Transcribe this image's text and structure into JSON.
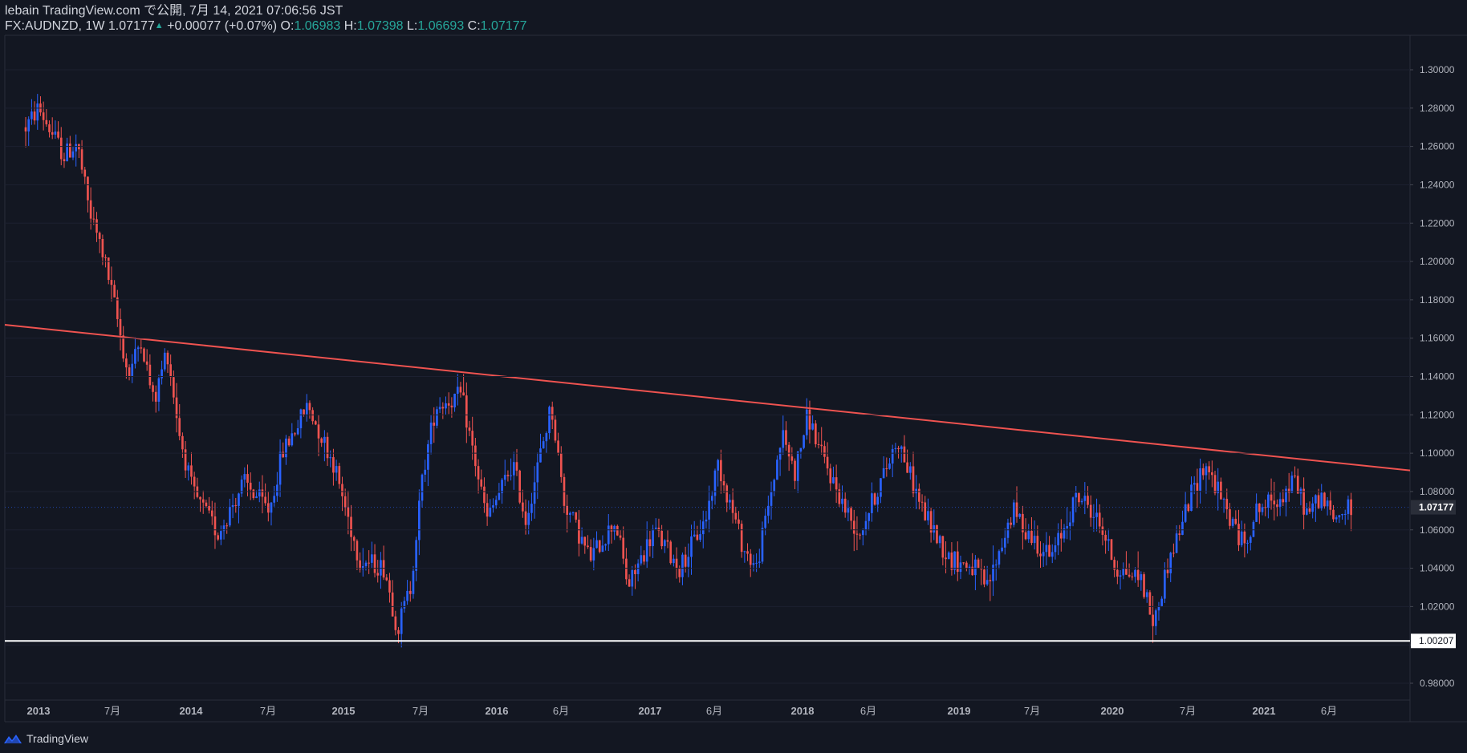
{
  "header": {
    "publish_line": "lebain TradingView.com で公開, 7月 14, 2021 07:06:56 JST",
    "symbol": "FX:AUDNZD, 1W",
    "price": "1.07177",
    "change": "+0.00077 (+0.07%)",
    "o_label": "O:",
    "o_value": "1.06983",
    "h_label": "H:",
    "h_value": "1.07398",
    "l_label": "L:",
    "l_value": "1.06693",
    "c_label": "C:",
    "c_value": "1.07177"
  },
  "footer": {
    "brand": "TradingView",
    "logo_icon": "tradingview-logo-icon"
  },
  "colors": {
    "background": "#131722",
    "up": "#2962ff",
    "down": "#ef5350",
    "trendline": "#ef5350",
    "support_line": "#ffffff",
    "text": "#b2b5be"
  },
  "chart_data": {
    "type": "candlestick",
    "symbol": "FX:AUDNZD",
    "interval": "1W",
    "ylim": [
      0.97,
      1.31
    ],
    "y_ticks": [
      "1.30000",
      "1.28000",
      "1.26000",
      "1.24000",
      "1.22000",
      "1.20000",
      "1.18000",
      "1.16000",
      "1.14000",
      "1.12000",
      "1.10000",
      "1.08000",
      "1.06000",
      "1.04000",
      "1.02000",
      "1.00000",
      "0.98000"
    ],
    "x_labels": [
      "2013",
      "7月",
      "2014",
      "7月",
      "2015",
      "7月",
      "2016",
      "6月",
      "2017",
      "6月",
      "2018",
      "6月",
      "2019",
      "7月",
      "2020",
      "7月",
      "2021",
      "6月"
    ],
    "last_price_label": "1.07177",
    "support_label": "1.00207",
    "support_level": 1.00207,
    "trendline": {
      "start": [
        "2012-12",
        1.167
      ],
      "end": [
        "2021-12",
        1.091
      ]
    },
    "swing_points": [
      [
        "2012-12",
        1.27
      ],
      [
        "2013-01",
        1.28
      ],
      [
        "2013-03",
        1.255
      ],
      [
        "2013-04",
        1.262
      ],
      [
        "2013-05",
        1.225
      ],
      [
        "2013-06",
        1.205
      ],
      [
        "2013-07",
        1.175
      ],
      [
        "2013-08",
        1.14
      ],
      [
        "2013-09",
        1.16
      ],
      [
        "2013-10",
        1.125
      ],
      [
        "2013-11",
        1.155
      ],
      [
        "2013-12",
        1.11
      ],
      [
        "2014-01",
        1.08
      ],
      [
        "2014-03",
        1.058
      ],
      [
        "2014-05",
        1.085
      ],
      [
        "2014-07",
        1.07
      ],
      [
        "2014-08",
        1.1
      ],
      [
        "2014-10",
        1.125
      ],
      [
        "2014-12",
        1.095
      ],
      [
        "2015-02",
        1.045
      ],
      [
        "2015-04",
        1.04
      ],
      [
        "2015-05",
        1.008
      ],
      [
        "2015-06",
        1.03
      ],
      [
        "2015-07",
        1.09
      ],
      [
        "2015-08",
        1.125
      ],
      [
        "2015-10",
        1.13
      ],
      [
        "2015-12",
        1.065
      ],
      [
        "2016-02",
        1.095
      ],
      [
        "2016-03",
        1.065
      ],
      [
        "2016-05",
        1.125
      ],
      [
        "2016-06",
        1.075
      ],
      [
        "2016-08",
        1.045
      ],
      [
        "2016-10",
        1.065
      ],
      [
        "2016-11",
        1.03
      ],
      [
        "2017-01",
        1.06
      ],
      [
        "2017-03",
        1.04
      ],
      [
        "2017-05",
        1.065
      ],
      [
        "2017-06",
        1.095
      ],
      [
        "2017-08",
        1.05
      ],
      [
        "2017-09",
        1.04
      ],
      [
        "2017-11",
        1.11
      ],
      [
        "2017-12",
        1.09
      ],
      [
        "2018-01",
        1.12
      ],
      [
        "2018-02",
        1.1
      ],
      [
        "2018-04",
        1.07
      ],
      [
        "2018-05",
        1.058
      ],
      [
        "2018-07",
        1.09
      ],
      [
        "2018-08",
        1.108
      ],
      [
        "2018-09",
        1.088
      ],
      [
        "2018-10",
        1.07
      ],
      [
        "2018-12",
        1.045
      ],
      [
        "2019-02",
        1.04
      ],
      [
        "2019-03",
        1.03
      ],
      [
        "2019-05",
        1.07
      ],
      [
        "2019-06",
        1.06
      ],
      [
        "2019-08",
        1.045
      ],
      [
        "2019-10",
        1.078
      ],
      [
        "2019-11",
        1.072
      ],
      [
        "2019-12",
        1.06
      ],
      [
        "2020-01",
        1.04
      ],
      [
        "2020-03",
        1.035
      ],
      [
        "2020-04",
        1.01
      ],
      [
        "2020-05",
        1.04
      ],
      [
        "2020-06",
        1.06
      ],
      [
        "2020-07",
        1.08
      ],
      [
        "2020-08",
        1.095
      ],
      [
        "2020-09",
        1.08
      ],
      [
        "2020-10",
        1.065
      ],
      [
        "2020-11",
        1.052
      ],
      [
        "2020-12",
        1.07
      ],
      [
        "2021-02",
        1.078
      ],
      [
        "2021-03",
        1.085
      ],
      [
        "2021-04",
        1.068
      ],
      [
        "2021-05",
        1.078
      ],
      [
        "2021-06",
        1.065
      ],
      [
        "2021-07",
        1.071
      ]
    ]
  }
}
